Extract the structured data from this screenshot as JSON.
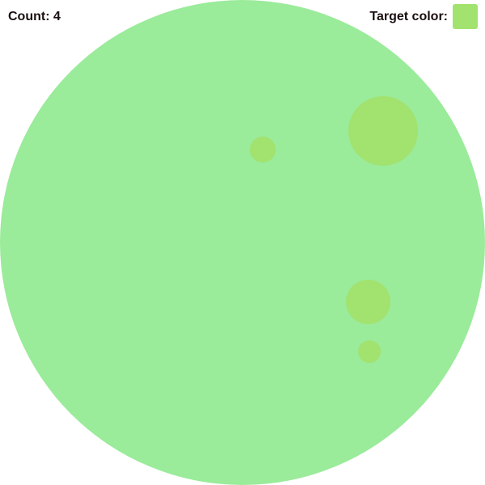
{
  "hud": {
    "count_label": "Count: 4",
    "target_label": "Target color:"
  },
  "colors": {
    "board": "#9aeb9a",
    "target": "#a2e26f",
    "text": "#1a0f0f"
  },
  "game": {
    "odd_color_dot_count": 4
  }
}
